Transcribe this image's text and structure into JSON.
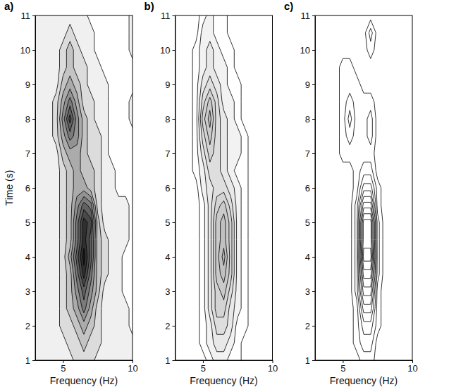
{
  "chart_data": [
    {
      "type": "contour",
      "title": "a)",
      "xlabel": "Frequency (Hz)",
      "ylabel": "Time (s)",
      "x": [
        3,
        3.5,
        4,
        4.5,
        5,
        5.5,
        6,
        6.5,
        7,
        7.5,
        8,
        8.5,
        9,
        9.5,
        10
      ],
      "y": [
        1,
        1.5,
        2,
        2.5,
        3,
        3.5,
        4,
        4.5,
        5,
        5.5,
        6,
        6.5,
        7,
        7.5,
        8,
        8.5,
        9,
        9.5,
        10,
        10.5,
        11
      ],
      "z": [
        [
          1,
          1,
          1,
          1,
          1,
          1,
          2,
          2,
          2,
          1,
          1,
          1,
          1,
          1,
          1
        ],
        [
          1,
          1,
          1,
          1,
          1,
          2,
          2,
          3,
          2,
          2,
          1,
          1,
          1,
          1,
          1
        ],
        [
          1,
          1,
          1,
          1,
          2,
          2,
          3,
          4,
          3,
          2,
          1,
          1,
          1,
          1,
          0
        ],
        [
          1,
          1,
          1,
          1,
          2,
          3,
          4,
          6,
          4,
          2,
          1,
          1,
          1,
          1,
          0
        ],
        [
          1,
          1,
          1,
          1,
          2,
          3,
          5,
          7,
          5,
          3,
          1,
          1,
          1,
          0,
          0
        ],
        [
          1,
          1,
          1,
          1,
          2,
          3,
          6,
          9,
          6,
          3,
          2,
          1,
          1,
          0,
          0
        ],
        [
          1,
          1,
          1,
          1,
          2,
          4,
          7,
          10,
          7,
          3,
          2,
          1,
          1,
          0,
          0
        ],
        [
          1,
          1,
          1,
          1,
          2,
          3,
          6,
          9,
          7,
          3,
          2,
          1,
          1,
          1,
          0
        ],
        [
          1,
          1,
          1,
          1,
          2,
          3,
          6,
          9,
          8,
          3,
          1,
          1,
          1,
          1,
          0
        ],
        [
          1,
          1,
          1,
          1,
          2,
          3,
          5,
          7,
          6,
          2,
          1,
          1,
          1,
          1,
          0
        ],
        [
          1,
          1,
          1,
          1,
          2,
          3,
          4,
          4,
          3,
          2,
          1,
          1,
          0,
          0,
          0
        ],
        [
          1,
          1,
          1,
          1,
          2,
          3,
          4,
          3,
          3,
          2,
          1,
          1,
          0,
          0,
          0
        ],
        [
          1,
          1,
          1,
          1,
          3,
          4,
          4,
          3,
          2,
          2,
          1,
          0,
          0,
          0,
          0
        ],
        [
          1,
          1,
          1,
          2,
          4,
          6,
          5,
          3,
          2,
          2,
          1,
          0,
          0,
          0,
          0
        ],
        [
          1,
          1,
          1,
          2,
          5,
          8,
          5,
          3,
          2,
          1,
          1,
          0,
          0,
          0,
          1
        ],
        [
          1,
          1,
          1,
          2,
          4,
          6,
          4,
          2,
          2,
          1,
          1,
          0,
          0,
          0,
          1
        ],
        [
          1,
          1,
          1,
          1,
          3,
          4,
          3,
          2,
          1,
          1,
          1,
          0,
          0,
          0,
          0
        ],
        [
          1,
          1,
          1,
          1,
          2,
          3,
          2,
          2,
          1,
          1,
          0,
          0,
          0,
          0,
          0
        ],
        [
          1,
          1,
          1,
          1,
          2,
          3,
          2,
          1,
          1,
          0,
          0,
          0,
          0,
          0,
          1
        ],
        [
          1,
          1,
          1,
          1,
          1,
          2,
          1,
          1,
          1,
          0,
          0,
          0,
          0,
          0,
          1
        ],
        [
          1,
          1,
          1,
          1,
          1,
          1,
          1,
          1,
          0,
          0,
          0,
          0,
          0,
          0,
          1
        ]
      ],
      "levels": [
        0.5,
        1.5,
        2.5,
        3.5,
        4.5,
        5.5,
        6.5,
        7.5,
        8.5,
        9.5
      ],
      "colors": [
        "#f0f0f0",
        "#dcdcdc",
        "#c4c4c4",
        "#ababab",
        "#939393",
        "#7a7a7a",
        "#616161",
        "#484848",
        "#303030",
        "#1a1a1a"
      ],
      "xlim": [
        3,
        10
      ],
      "xticks": [
        5,
        10
      ],
      "ylim": [
        1,
        11
      ],
      "yticks": [
        1,
        2,
        3,
        4,
        5,
        6,
        7,
        8,
        9,
        10,
        11
      ]
    },
    {
      "type": "contour",
      "title": "b)",
      "xlabel": "Frequency (Hz)",
      "x": [
        3,
        3.5,
        4,
        4.5,
        5,
        5.5,
        6,
        6.5,
        7,
        7.5,
        8,
        8.5,
        9,
        9.5,
        10
      ],
      "y": [
        1,
        1.5,
        2,
        2.5,
        3,
        3.5,
        4,
        4.5,
        5,
        5.5,
        6,
        6.5,
        7,
        7.5,
        8,
        8.5,
        9,
        9.5,
        10,
        10.5,
        11
      ],
      "z": [
        [
          0,
          0,
          0,
          0,
          0,
          1,
          2,
          2,
          1,
          1,
          0,
          0,
          0,
          0,
          0
        ],
        [
          0,
          0,
          0,
          0,
          1,
          2,
          3,
          3,
          2,
          1,
          0,
          0,
          0,
          0,
          0
        ],
        [
          0,
          0,
          0,
          0,
          1,
          2,
          4,
          4,
          3,
          1,
          1,
          0,
          0,
          0,
          0
        ],
        [
          0,
          0,
          0,
          0,
          1,
          3,
          5,
          5,
          3,
          2,
          1,
          0,
          0,
          0,
          0
        ],
        [
          0,
          0,
          0,
          0,
          1,
          3,
          5,
          6,
          4,
          2,
          1,
          0,
          0,
          0,
          0
        ],
        [
          0,
          0,
          0,
          0,
          1,
          3,
          6,
          7,
          5,
          2,
          1,
          0,
          0,
          0,
          0
        ],
        [
          0,
          0,
          0,
          0,
          1,
          3,
          6,
          8,
          5,
          2,
          1,
          0,
          0,
          0,
          0
        ],
        [
          0,
          0,
          0,
          0,
          1,
          3,
          6,
          7,
          5,
          2,
          1,
          0,
          0,
          0,
          0
        ],
        [
          0,
          0,
          0,
          0,
          1,
          3,
          6,
          7,
          5,
          2,
          1,
          0,
          0,
          0,
          0
        ],
        [
          0,
          0,
          0,
          0,
          1,
          3,
          5,
          6,
          4,
          2,
          1,
          0,
          0,
          0,
          0
        ],
        [
          0,
          0,
          0,
          0,
          2,
          3,
          4,
          4,
          3,
          2,
          1,
          0,
          0,
          0,
          0
        ],
        [
          0,
          0,
          0,
          1,
          2,
          4,
          4,
          3,
          2,
          1,
          1,
          0,
          0,
          0,
          0
        ],
        [
          0,
          0,
          0,
          1,
          3,
          5,
          4,
          3,
          2,
          2,
          1,
          0,
          0,
          0,
          0
        ],
        [
          0,
          0,
          0,
          1,
          4,
          6,
          4,
          3,
          2,
          2,
          1,
          0,
          0,
          0,
          0
        ],
        [
          0,
          0,
          0,
          1,
          5,
          7,
          4,
          3,
          2,
          1,
          0,
          0,
          0,
          0,
          0
        ],
        [
          0,
          0,
          0,
          1,
          4,
          6,
          4,
          2,
          2,
          1,
          0,
          0,
          0,
          0,
          0
        ],
        [
          0,
          0,
          0,
          1,
          3,
          4,
          3,
          2,
          1,
          1,
          0,
          0,
          0,
          0,
          0
        ],
        [
          0,
          0,
          0,
          1,
          2,
          3,
          2,
          2,
          1,
          0,
          0,
          0,
          0,
          0,
          0
        ],
        [
          0,
          0,
          0,
          1,
          2,
          3,
          2,
          1,
          1,
          0,
          0,
          0,
          0,
          0,
          0
        ],
        [
          0,
          0,
          0,
          0,
          2,
          2,
          1,
          1,
          0,
          0,
          0,
          0,
          0,
          0,
          0
        ],
        [
          0,
          0,
          0,
          0,
          1,
          2,
          1,
          1,
          0,
          0,
          0,
          0,
          0,
          0,
          0
        ]
      ],
      "levels": [
        0.5,
        1.5,
        2.5,
        3.5,
        4.5,
        5.5,
        6.5,
        7.5
      ],
      "colors": [
        "#ffffff",
        "#f2f2f2",
        "#e8e8e8",
        "#dedede",
        "#d4d4d4",
        "#cacaca",
        "#c0c0c0",
        "#b6b6b6"
      ],
      "xlim": [
        3,
        10
      ],
      "xticks": [
        5,
        10
      ],
      "ylim": [
        1,
        11
      ],
      "yticks": [
        1,
        2,
        3,
        4,
        5,
        6,
        7,
        8,
        9,
        10,
        11
      ]
    },
    {
      "type": "contour",
      "title": "c)",
      "xlabel": "Frequency (Hz)",
      "x": [
        3,
        3.5,
        4,
        4.5,
        5,
        5.5,
        6,
        6.5,
        7,
        7.5,
        8,
        8.5,
        9,
        9.5,
        10
      ],
      "y": [
        1,
        1.5,
        2,
        2.5,
        3,
        3.5,
        4,
        4.5,
        5,
        5.5,
        6,
        6.5,
        7,
        7.5,
        8,
        8.5,
        9,
        9.5,
        10,
        10.5,
        11
      ],
      "z": [
        [
          0,
          0,
          0,
          0,
          0,
          0,
          0,
          1,
          1,
          0,
          0,
          0,
          0,
          0,
          0
        ],
        [
          0,
          0,
          0,
          0,
          0,
          0,
          1,
          2,
          2,
          0,
          0,
          0,
          0,
          0,
          0
        ],
        [
          0,
          0,
          0,
          0,
          0,
          0,
          1,
          3,
          3,
          1,
          0,
          0,
          0,
          0,
          0
        ],
        [
          0,
          0,
          0,
          0,
          0,
          0,
          1,
          5,
          5,
          1,
          0,
          0,
          0,
          0,
          0
        ],
        [
          0,
          0,
          0,
          0,
          0,
          0,
          2,
          7,
          7,
          1,
          0,
          0,
          0,
          0,
          0
        ],
        [
          0,
          0,
          0,
          0,
          0,
          0,
          2,
          9,
          9,
          2,
          0,
          0,
          0,
          0,
          0
        ],
        [
          0,
          0,
          0,
          0,
          0,
          0,
          2,
          11,
          11,
          2,
          0,
          0,
          0,
          0,
          0
        ],
        [
          0,
          0,
          0,
          0,
          0,
          0,
          2,
          10,
          10,
          2,
          0,
          0,
          0,
          0,
          0
        ],
        [
          0,
          0,
          0,
          0,
          0,
          0,
          2,
          10,
          10,
          2,
          0,
          0,
          0,
          0,
          0
        ],
        [
          0,
          0,
          0,
          0,
          0,
          0,
          2,
          7,
          7,
          1,
          0,
          0,
          0,
          0,
          0
        ],
        [
          0,
          0,
          0,
          0,
          0,
          0,
          1,
          4,
          4,
          1,
          0,
          0,
          0,
          0,
          0
        ],
        [
          0,
          0,
          0,
          0,
          0,
          0,
          1,
          2,
          2,
          0,
          0,
          0,
          0,
          0,
          0
        ],
        [
          0,
          0,
          0,
          0,
          1,
          1,
          1,
          1,
          1,
          0,
          0,
          0,
          0,
          0,
          0
        ],
        [
          0,
          0,
          0,
          0,
          1,
          2,
          1,
          1,
          2,
          0,
          0,
          0,
          0,
          0,
          0
        ],
        [
          0,
          0,
          0,
          0,
          1,
          3,
          1,
          1,
          2,
          0,
          0,
          0,
          0,
          0,
          0
        ],
        [
          0,
          0,
          0,
          0,
          1,
          2,
          1,
          1,
          1,
          0,
          0,
          0,
          0,
          0,
          0
        ],
        [
          0,
          0,
          0,
          0,
          1,
          1,
          1,
          0,
          0,
          0,
          0,
          0,
          0,
          0,
          0
        ],
        [
          0,
          0,
          0,
          0,
          1,
          1,
          0,
          0,
          0,
          0,
          0,
          0,
          0,
          0,
          0
        ],
        [
          0,
          0,
          0,
          0,
          0,
          0,
          0,
          0,
          1,
          0,
          0,
          0,
          0,
          0,
          0
        ],
        [
          0,
          0,
          0,
          0,
          0,
          0,
          0,
          0,
          2,
          0,
          0,
          0,
          0,
          0,
          0
        ],
        [
          0,
          0,
          0,
          0,
          0,
          0,
          0,
          0,
          0,
          0,
          0,
          0,
          0,
          0,
          0
        ]
      ],
      "levels": [
        0.5,
        1.5,
        2.5,
        3.5,
        4.5,
        5.5,
        6.5,
        7.5,
        8.5,
        9.5,
        10.5
      ],
      "colors": [
        "#ffffff",
        "#ffffff",
        "#ffffff",
        "#ffffff",
        "#ffffff",
        "#ffffff",
        "#ffffff",
        "#ffffff",
        "#ffffff",
        "#ffffff",
        "#ffffff"
      ],
      "xlim": [
        3,
        10
      ],
      "xticks": [
        5,
        10
      ],
      "ylim": [
        1,
        11
      ],
      "yticks": [
        1,
        2,
        3,
        4,
        5,
        6,
        7,
        8,
        9,
        10,
        11
      ]
    }
  ]
}
